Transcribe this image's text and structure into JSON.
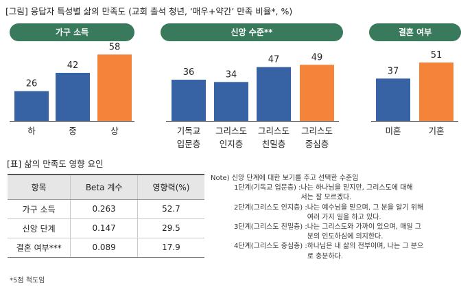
{
  "figure_title": "[그림] 응답자 특성별 삶의 만족도 (교회 출석 청년, ‘매우+약간’ 만족 비율*, %)",
  "chart_data": {
    "type": "bar",
    "title": "[그림] 응답자 특성별 삶의 만족도 (교회 출석 청년, ‘매우+약간’ 만족 비율*, %)",
    "unit": "%",
    "ylim": [
      0,
      60
    ],
    "groups": [
      {
        "name": "가구 소득",
        "categories": [
          "하",
          "중",
          "상"
        ],
        "values": [
          26,
          42,
          58
        ],
        "colors": [
          "#3763a4",
          "#3763a4",
          "#f5833a"
        ]
      },
      {
        "name": "신앙 수준**",
        "categories": [
          "기독교 입문층",
          "그리스도 인지층",
          "그리스도 친밀층",
          "그리스도 중심층"
        ],
        "label_lines": [
          [
            "기독교",
            "입문층"
          ],
          [
            "그리스도",
            "인지층"
          ],
          [
            "그리스도",
            "친밀층"
          ],
          [
            "그리스도",
            "중심층"
          ]
        ],
        "values": [
          36,
          34,
          47,
          49
        ],
        "colors": [
          "#3763a4",
          "#3763a4",
          "#3763a4",
          "#f5833a"
        ]
      },
      {
        "name": "결혼 여부",
        "categories": [
          "미혼",
          "기혼"
        ],
        "values": [
          37,
          51
        ],
        "colors": [
          "#3763a4",
          "#f5833a"
        ]
      }
    ]
  },
  "table": {
    "title": "[표] 삶의 만족도 영향 요인",
    "headers": [
      "항목",
      "Beta 계수",
      "영향력(%)"
    ],
    "rows": [
      [
        "가구 소득",
        "0.263",
        "52.7"
      ],
      [
        "신앙 단계",
        "0.147",
        "29.5"
      ],
      [
        "결혼 여부***",
        "0.089",
        "17.9"
      ]
    ]
  },
  "footnote": "*5점 척도임",
  "note": {
    "heading": "Note) 신앙 단계에 대한 보기를 주고 선택한 수준임",
    "items": [
      {
        "stage": "1단계(기독교 입문층) :",
        "text": "나는 하나님을 믿지만, 그리스도에 대해서는 잘 모르겠다."
      },
      {
        "stage": "2단계(그리스도 인지층) :",
        "text": "나는 예수님을 믿으며, 그 분을 알기 위해 여러 가지 일을 하고 있다."
      },
      {
        "stage": "3단계(그리스도 친밀층) :",
        "text": "나는 그리스도와 가까이 있으며, 매일 그 분의 인도하심에 의지한다."
      },
      {
        "stage": "4단계(그리스도 중심층) :",
        "text": "하나님은 내 삶의 전부이며, 나는 그 분으로 충분하다."
      }
    ]
  },
  "colors": {
    "header_green": "#3a7a5c",
    "bar_blue": "#3763a4",
    "bar_orange": "#f5833a"
  }
}
